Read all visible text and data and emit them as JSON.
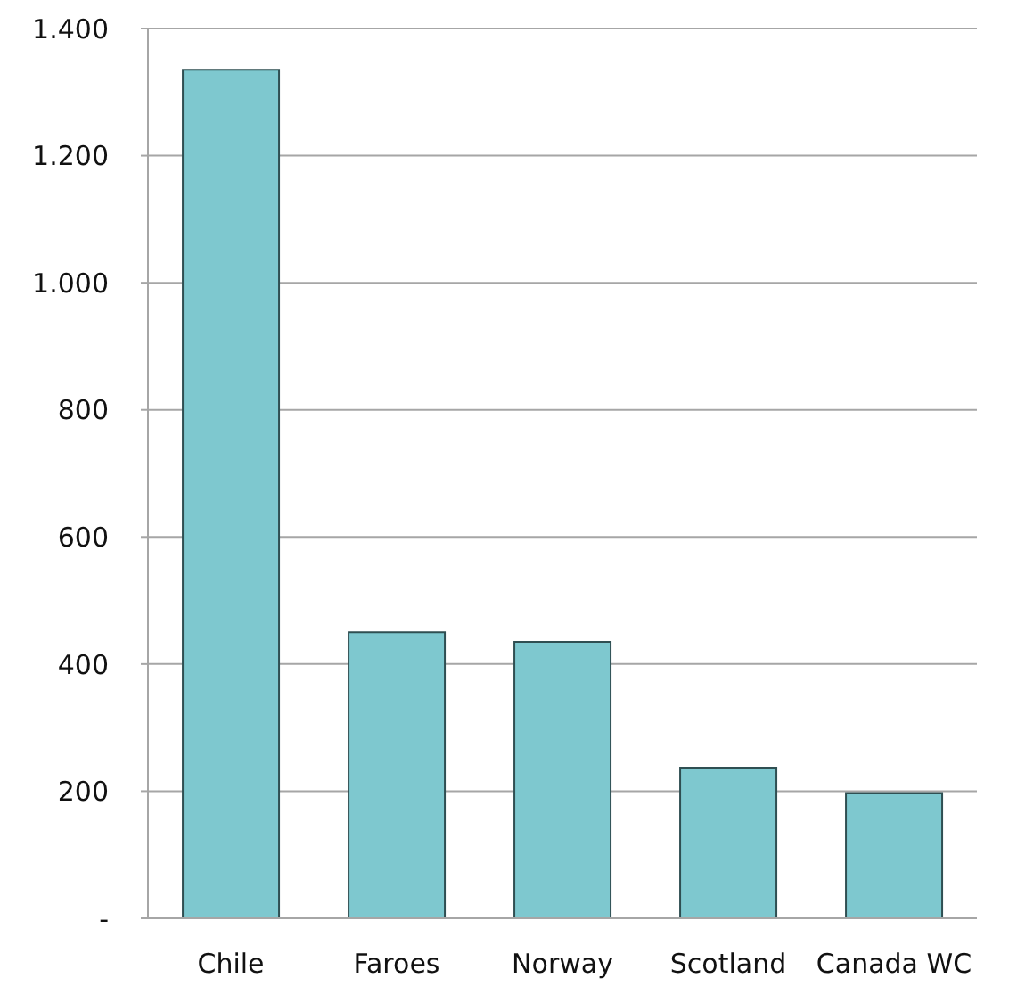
{
  "chart_data": {
    "type": "bar",
    "categories": [
      "Chile",
      "Faroes",
      "Norway",
      "Scotland",
      "Canada WC"
    ],
    "values": [
      1335,
      450,
      435,
      237,
      197
    ],
    "color": "#7ec8cf",
    "ylim": [
      0,
      1400
    ],
    "yticks": [
      {
        "value": 0,
        "label": "-"
      },
      200,
      400,
      600,
      800,
      {
        "value": 1000,
        "label": "1.000"
      },
      {
        "value": 1200,
        "label": "1.200"
      },
      {
        "value": 1400,
        "label": "1.400"
      }
    ],
    "grid": "y"
  }
}
